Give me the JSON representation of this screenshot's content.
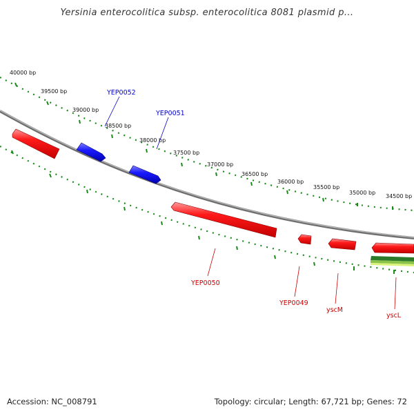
{
  "title": "Yersinia enterocolitica subsp. enterocolitica 8081 plasmid p...",
  "accession": "Accession: NC_008791",
  "summary": "Topology: circular; Length: 67,721 bp; Genes: 72",
  "scale_labels": [
    "40000 bp",
    "39500 bp",
    "39000 bp",
    "38500 bp",
    "38000 bp",
    "37500 bp",
    "37000 bp",
    "36500 bp",
    "36000 bp",
    "35500 bp",
    "35000 bp",
    "34500 bp"
  ],
  "genes_forward": [
    {
      "name": "YEP0052"
    },
    {
      "name": "YEP0051"
    }
  ],
  "genes_reverse": [
    {
      "name": "YEP0050"
    },
    {
      "name": "YEP0049"
    },
    {
      "name": "yscM"
    },
    {
      "name": "yscL"
    }
  ],
  "colors": {
    "forward_strand": "#0000dd",
    "reverse_strand": "#ee0000",
    "scale_ticks": "#1a8a1a",
    "backbone": "#888888",
    "gc_track": "#2a7a2a"
  }
}
